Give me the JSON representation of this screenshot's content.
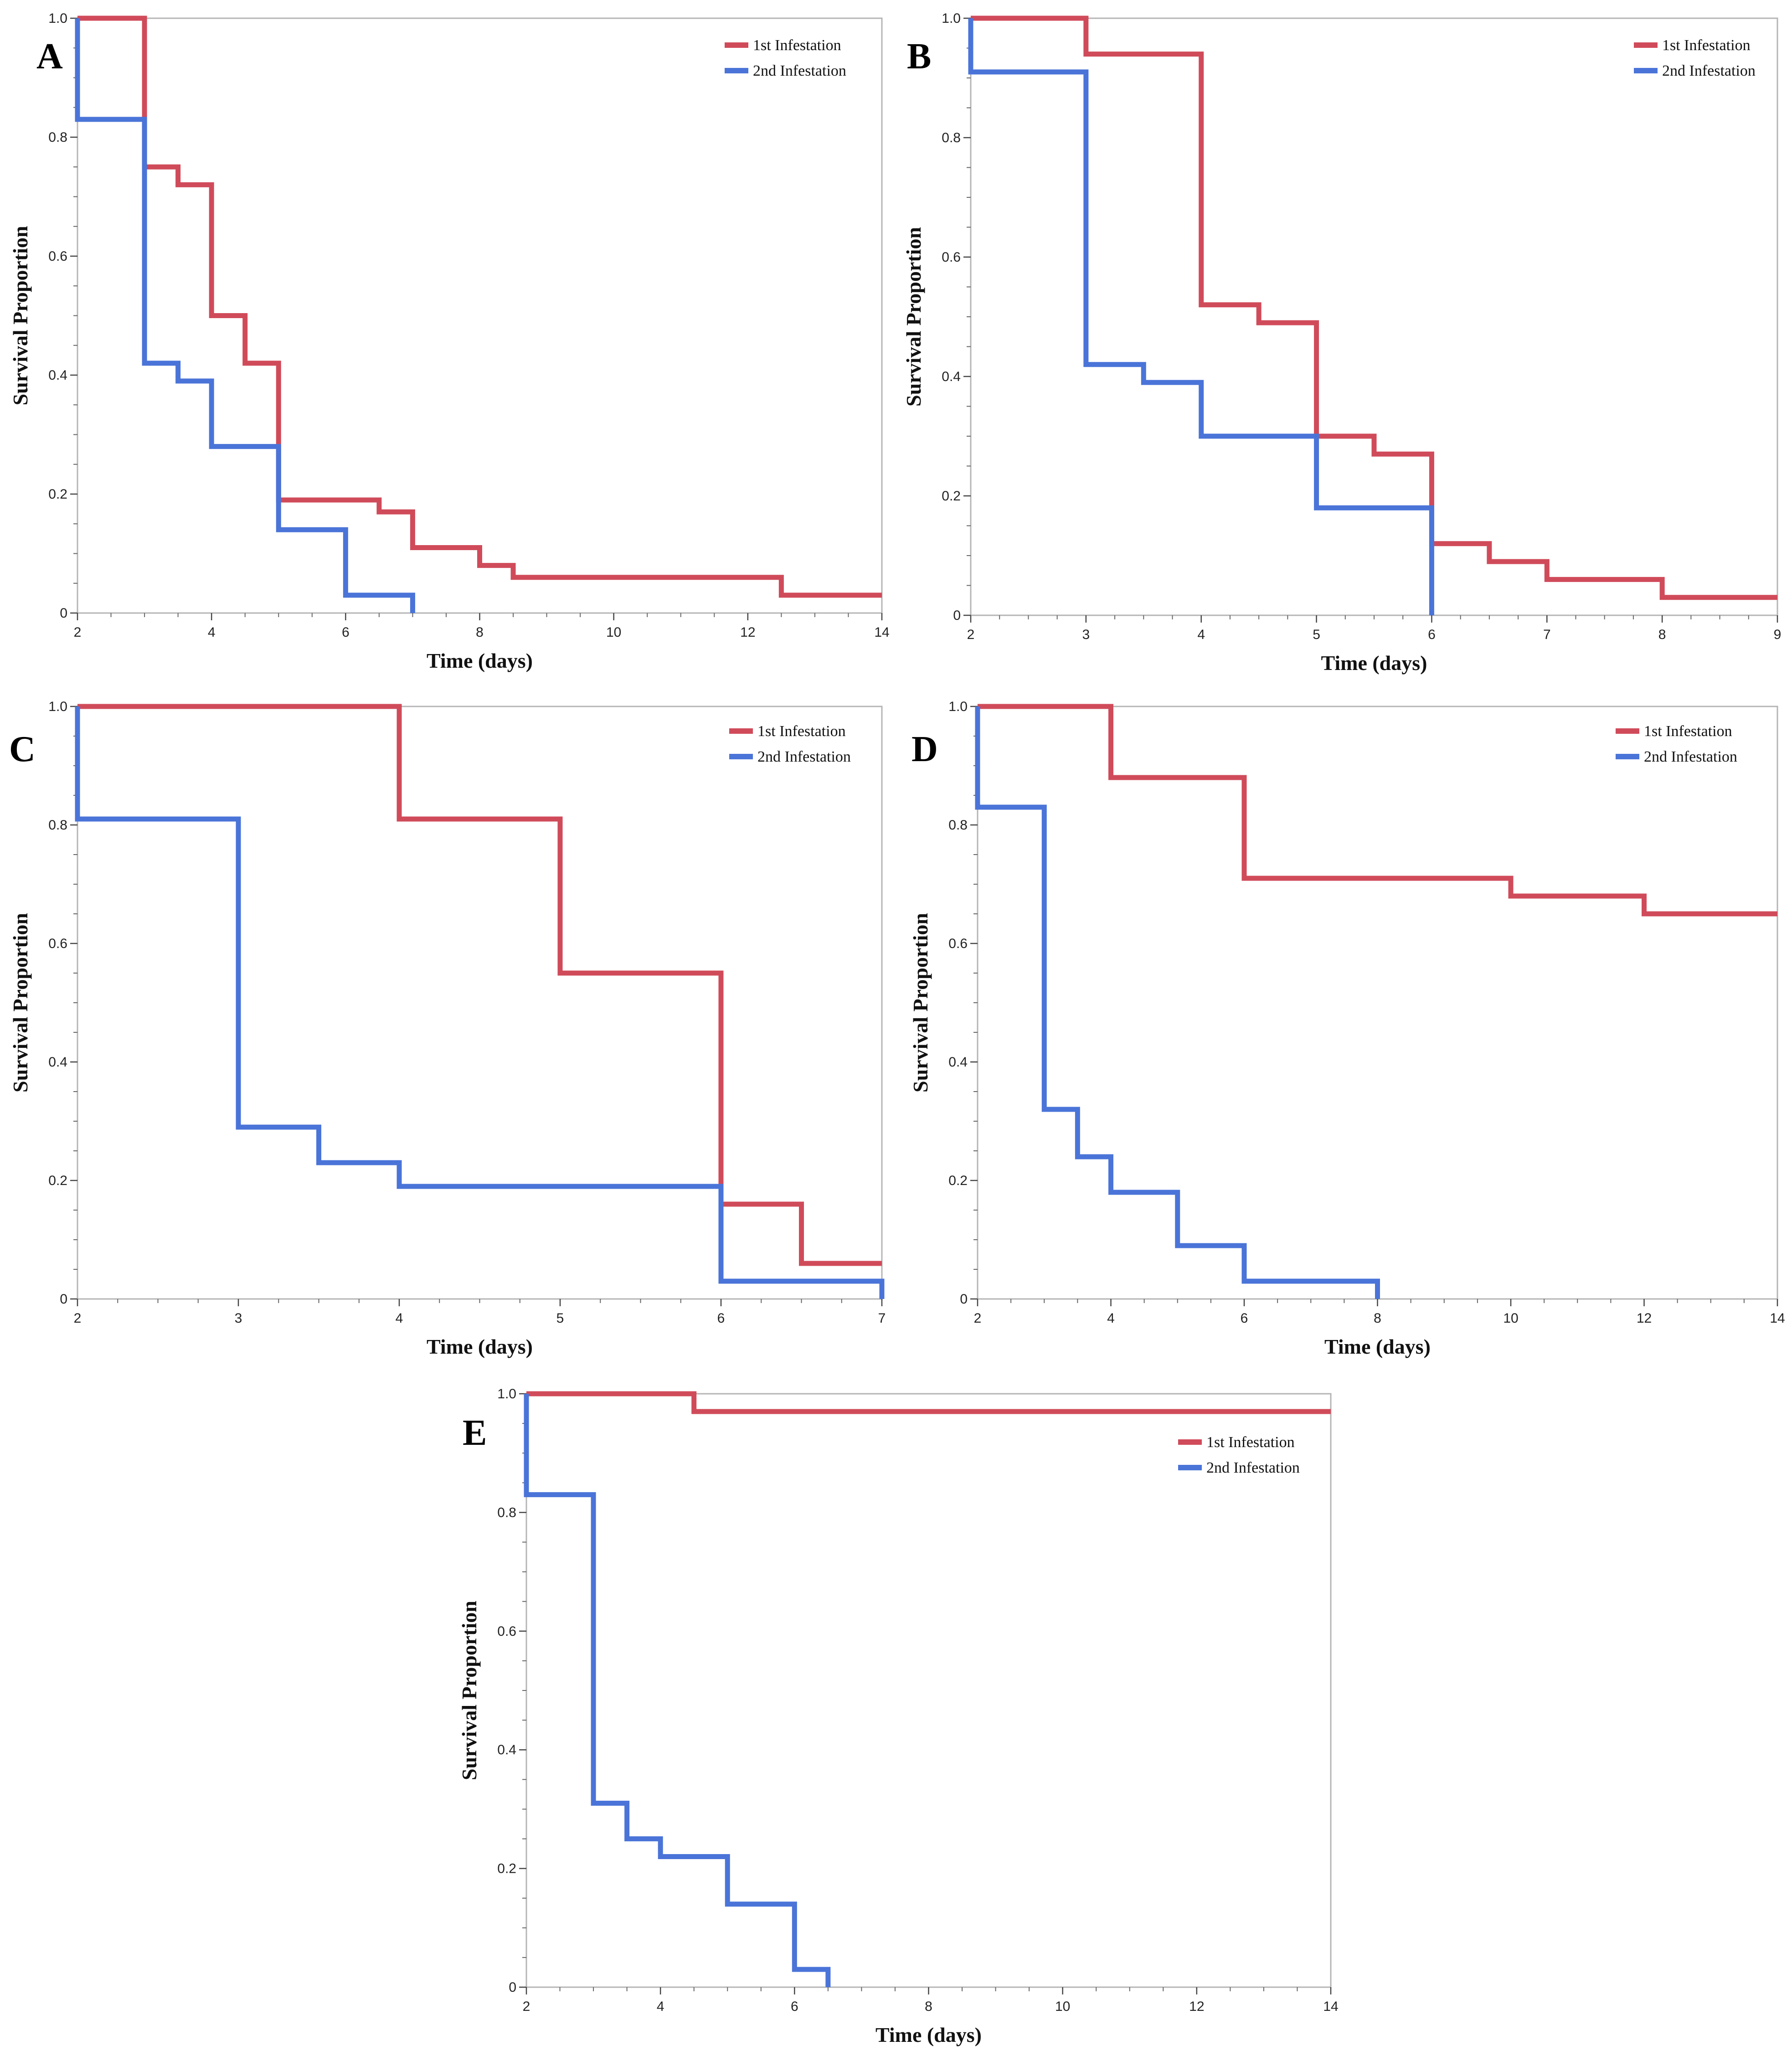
{
  "chart_data": [
    {
      "panel": "A",
      "type": "line",
      "title": "",
      "xlabel": "Time (days)",
      "ylabel": "Survival Proportion",
      "xlim": [
        2,
        14
      ],
      "ylim": [
        0,
        1.0
      ],
      "xticks": [
        2,
        4,
        6,
        8,
        10,
        12,
        14
      ],
      "xtick_labels": [
        "2",
        "4",
        "6",
        "8",
        "10",
        "12",
        "14"
      ],
      "yticks": [
        0,
        0.2,
        0.4,
        0.6,
        0.8,
        1.0
      ],
      "ytick_labels": [
        "0",
        "0.2",
        "0.4",
        "0.6",
        "0.8",
        "1.0"
      ],
      "legend_position": "top-right",
      "series": [
        {
          "name": "1st Infestation",
          "color": "#d04b5a",
          "x": [
            2,
            3,
            3.5,
            4,
            4.5,
            5,
            6.5,
            7,
            8,
            8.5,
            12.5,
            14
          ],
          "values": [
            1.0,
            0.75,
            0.72,
            0.5,
            0.42,
            0.19,
            0.17,
            0.11,
            0.08,
            0.06,
            0.03,
            0.03
          ]
        },
        {
          "name": "2nd Infestation",
          "color": "#4a74d8",
          "x": [
            2,
            3,
            3.5,
            4,
            5,
            6,
            7
          ],
          "values": [
            0.83,
            0.42,
            0.39,
            0.28,
            0.14,
            0.03,
            0.0
          ]
        }
      ]
    },
    {
      "panel": "B",
      "type": "line",
      "title": "",
      "xlabel": "Time (days)",
      "ylabel": "Survival Proportion",
      "xlim": [
        2,
        9
      ],
      "ylim": [
        0,
        1.0
      ],
      "xticks": [
        2,
        3,
        4,
        5,
        6,
        7,
        8,
        9
      ],
      "xtick_labels": [
        "2",
        "3",
        "4",
        "5",
        "6",
        "7",
        "8",
        "9"
      ],
      "yticks": [
        0,
        0.2,
        0.4,
        0.6,
        0.8,
        1.0
      ],
      "ytick_labels": [
        "0",
        "0.2",
        "0.4",
        "0.6",
        "0.8",
        "1.0"
      ],
      "legend_position": "top-right",
      "series": [
        {
          "name": "1st Infestation",
          "color": "#d04b5a",
          "x": [
            2,
            3,
            4,
            4.5,
            5,
            5.5,
            6,
            6.5,
            7,
            8,
            9
          ],
          "values": [
            1.0,
            0.94,
            0.52,
            0.49,
            0.3,
            0.27,
            0.12,
            0.09,
            0.06,
            0.03,
            0.03
          ]
        },
        {
          "name": "2nd Infestation",
          "color": "#4a74d8",
          "x": [
            2,
            3,
            3.5,
            4,
            5,
            6
          ],
          "values": [
            0.91,
            0.42,
            0.39,
            0.3,
            0.18,
            0.0
          ]
        }
      ]
    },
    {
      "panel": "C",
      "type": "line",
      "title": "",
      "xlabel": "Time (days)",
      "ylabel": "Survival Proportion",
      "xlim": [
        2,
        7
      ],
      "ylim": [
        0,
        1.0
      ],
      "xticks": [
        2,
        3,
        4,
        5,
        6,
        7
      ],
      "xtick_labels": [
        "2",
        "3",
        "4",
        "5",
        "6",
        "7"
      ],
      "yticks": [
        0,
        0.2,
        0.4,
        0.6,
        0.8,
        1.0
      ],
      "ytick_labels": [
        "0",
        "0.2",
        "0.4",
        "0.6",
        "0.8",
        "1.0"
      ],
      "legend_position": "top-right",
      "series": [
        {
          "name": "1st Infestation",
          "color": "#d04b5a",
          "x": [
            2,
            4,
            5,
            6,
            6.5,
            7
          ],
          "values": [
            1.0,
            0.81,
            0.55,
            0.16,
            0.06,
            0.06
          ]
        },
        {
          "name": "2nd Infestation",
          "color": "#4a74d8",
          "x": [
            2,
            3,
            3.5,
            4,
            6,
            7
          ],
          "values": [
            0.81,
            0.29,
            0.23,
            0.19,
            0.03,
            0.0
          ]
        }
      ]
    },
    {
      "panel": "D",
      "type": "line",
      "title": "",
      "xlabel": "Time (days)",
      "ylabel": "Survival Proportion",
      "xlim": [
        2,
        14
      ],
      "ylim": [
        0,
        1.0
      ],
      "xticks": [
        2,
        4,
        6,
        8,
        10,
        12,
        14
      ],
      "xtick_labels": [
        "2",
        "4",
        "6",
        "8",
        "10",
        "12",
        "14"
      ],
      "yticks": [
        0,
        0.2,
        0.4,
        0.6,
        0.8,
        1.0
      ],
      "ytick_labels": [
        "0",
        "0.2",
        "0.4",
        "0.6",
        "0.8",
        "1.0"
      ],
      "legend_position": "top-right",
      "series": [
        {
          "name": "1st Infestation",
          "color": "#d04b5a",
          "x": [
            2,
            4,
            6,
            10,
            12,
            14
          ],
          "values": [
            1.0,
            0.88,
            0.71,
            0.68,
            0.65,
            0.65
          ]
        },
        {
          "name": "2nd Infestation",
          "color": "#4a74d8",
          "x": [
            2,
            3,
            3.5,
            4,
            5,
            6,
            8
          ],
          "values": [
            0.83,
            0.32,
            0.24,
            0.18,
            0.09,
            0.03,
            0.0
          ]
        }
      ]
    },
    {
      "panel": "E",
      "type": "line",
      "title": "",
      "xlabel": "Time (days)",
      "ylabel": "Survival Proportion",
      "xlim": [
        2,
        14
      ],
      "ylim": [
        0,
        1.0
      ],
      "xticks": [
        2,
        4,
        6,
        8,
        10,
        12,
        14
      ],
      "xtick_labels": [
        "2",
        "4",
        "6",
        "8",
        "10",
        "12",
        "14"
      ],
      "yticks": [
        0,
        0.2,
        0.4,
        0.6,
        0.8,
        1.0
      ],
      "ytick_labels": [
        "0",
        "0.2",
        "0.4",
        "0.6",
        "0.8",
        "1.0"
      ],
      "legend_position": "top-right",
      "series": [
        {
          "name": "1st Infestation",
          "color": "#d04b5a",
          "x": [
            2,
            4.5,
            14
          ],
          "values": [
            1.0,
            0.97,
            0.97
          ]
        },
        {
          "name": "2nd Infestation",
          "color": "#4a74d8",
          "x": [
            2,
            3,
            3.5,
            4,
            5,
            6,
            6.5
          ],
          "values": [
            0.83,
            0.31,
            0.25,
            0.22,
            0.14,
            0.03,
            0.0
          ]
        }
      ]
    }
  ]
}
